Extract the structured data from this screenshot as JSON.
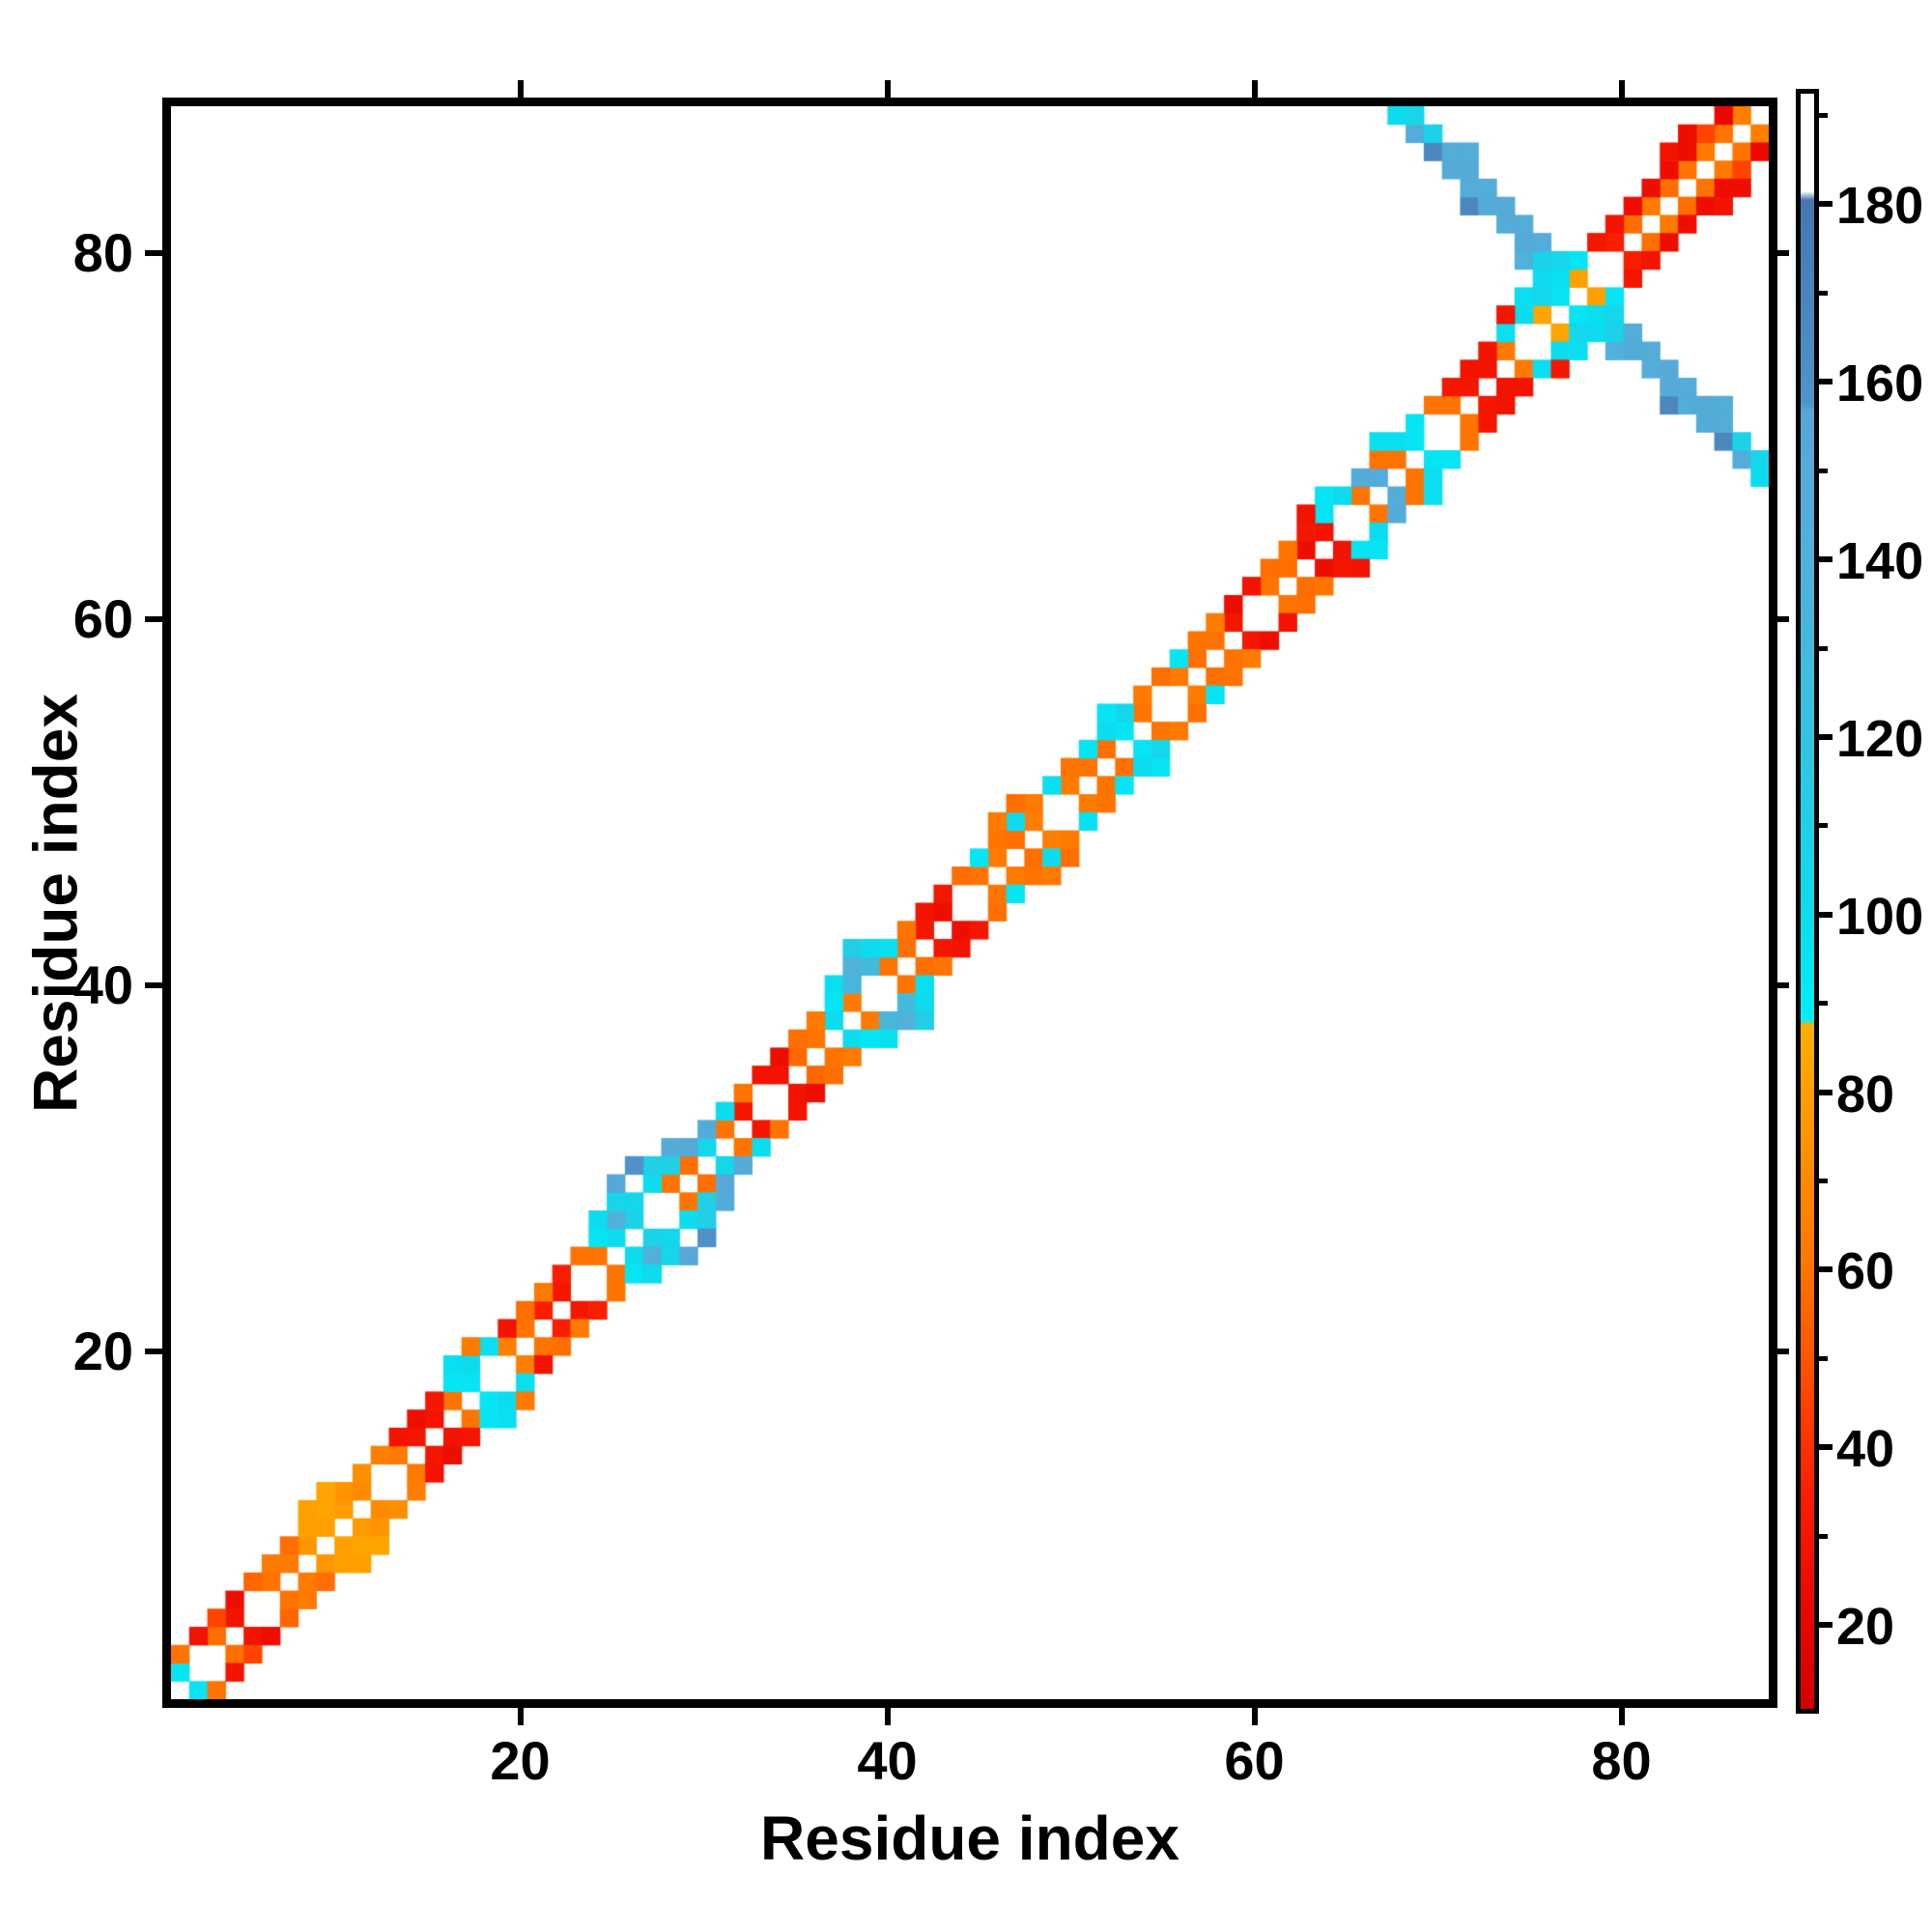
{
  "chart_data": {
    "type": "heatmap",
    "title": "",
    "xlabel": "Residue index",
    "ylabel": "Residue index",
    "x_ticks": [
      20,
      40,
      60,
      80
    ],
    "y_ticks": [
      20,
      40,
      60,
      80
    ],
    "x_range": [
      0.5,
      88.5
    ],
    "y_range": [
      0.5,
      88.5
    ],
    "n_residues": 88,
    "grid": false,
    "background_color": "#ffffff",
    "frame_color": "#000000",
    "symmetric": true,
    "colorbar": {
      "min": 10,
      "max": 193,
      "major_ticks": [
        20,
        40,
        60,
        80,
        100,
        120,
        140,
        160,
        180
      ],
      "minor_step": 10,
      "stops": [
        [
          10,
          "#d10000"
        ],
        [
          22,
          "#ea0800"
        ],
        [
          35,
          "#fb2000"
        ],
        [
          48,
          "#ff4f00"
        ],
        [
          62,
          "#ff7a00"
        ],
        [
          76,
          "#ff9600"
        ],
        [
          87.5,
          "#ffb000"
        ],
        [
          88,
          "#00f0fa"
        ],
        [
          100,
          "#0cdcee"
        ],
        [
          118,
          "#30c6e2"
        ],
        [
          138,
          "#4fb2da"
        ],
        [
          157,
          "#58a7d6"
        ],
        [
          158,
          "#5093ca"
        ],
        [
          181,
          "#4677b0"
        ],
        [
          182,
          "#ffffff"
        ],
        [
          193,
          "#ffffff"
        ]
      ]
    },
    "contacts": {
      "note_offset_arrays": "offset1[k] = contact value for residue pair (k+1, k+2); offset2[k] = (k+1, k+3); null = no contact (white). Map is symmetric.",
      "offset1": [
        95,
        null,
        58,
        28,
        null,
        60,
        62,
        76,
        80,
        78,
        70,
        null,
        62,
        30,
        28,
        60,
        95,
        null,
        64,
        60,
        34,
        30,
        null,
        60,
        100,
        108,
        null,
        60,
        58,
        104,
        60,
        30,
        null,
        28,
        56,
        60,
        100,
        62,
        null,
        60,
        58,
        30,
        25,
        null,
        60,
        62,
        58,
        64,
        null,
        62,
        60,
        58,
        95,
        60,
        null,
        62,
        58,
        60,
        30,
        null,
        60,
        58,
        25,
        28,
        null,
        60,
        148,
        60,
        95,
        null,
        60,
        30,
        28,
        62,
        null,
        82,
        95,
        80,
        null,
        34,
        58,
        62,
        58,
        60,
        62,
        60,
        64
      ],
      "offset2": [
        60,
        28,
        45,
        25,
        55,
        62,
        58,
        80,
        82,
        75,
        72,
        64,
        28,
        25,
        30,
        95,
        100,
        98,
        28,
        58,
        62,
        34,
        60,
        95,
        140,
        104,
        100,
        110,
        155,
        150,
        100,
        60,
        28,
        25,
        58,
        62,
        95,
        135,
        130,
        98,
        60,
        28,
        30,
        58,
        95,
        60,
        100,
        62,
        98,
        60,
        95,
        100,
        104,
        62,
        58,
        95,
        60,
        62,
        25,
        28,
        58,
        60,
        30,
        95,
        100,
        150,
        60,
        98,
        95,
        60,
        30,
        28,
        28,
        98,
        100,
        104,
        98,
        95,
        30,
        28,
        25,
        25,
        25,
        25,
        45,
        22
      ],
      "offset3": {
        "8": 80,
        "9": 82,
        "16": 98,
        "17": 62,
        "24": 100,
        "25": 105,
        "27": 110,
        "28": 150,
        "37": 98,
        "38": 140,
        "39": 100,
        "46": 62,
        "47": 58,
        "52": 95,
        "63": 28,
        "64": 95,
        "67": 98,
        "74": 30,
        "75": 98,
        "76": 100,
        "83": 28,
        "84": 25
      },
      "extra": [
        [
          25,
          29,
          155
        ],
        [
          26,
          30,
          160
        ],
        [
          38,
          42,
          112
        ]
      ],
      "antiparallel": [
        [
          68,
          88,
          100
        ],
        [
          69,
          87,
          148
        ],
        [
          69,
          88,
          105
        ],
        [
          70,
          86,
          168
        ],
        [
          70,
          87,
          108
        ],
        [
          71,
          85,
          150
        ],
        [
          71,
          86,
          148
        ],
        [
          72,
          83,
          168
        ],
        [
          72,
          84,
          148
        ],
        [
          72,
          85,
          152
        ],
        [
          72,
          86,
          145
        ],
        [
          73,
          83,
          150
        ],
        [
          73,
          84,
          148
        ],
        [
          74,
          82,
          148
        ],
        [
          74,
          83,
          152
        ],
        [
          75,
          80,
          140
        ],
        [
          75,
          81,
          150
        ],
        [
          75,
          82,
          148
        ],
        [
          76,
          80,
          108
        ],
        [
          76,
          81,
          148
        ],
        [
          77,
          79,
          98
        ],
        [
          77,
          80,
          105
        ]
      ]
    }
  }
}
